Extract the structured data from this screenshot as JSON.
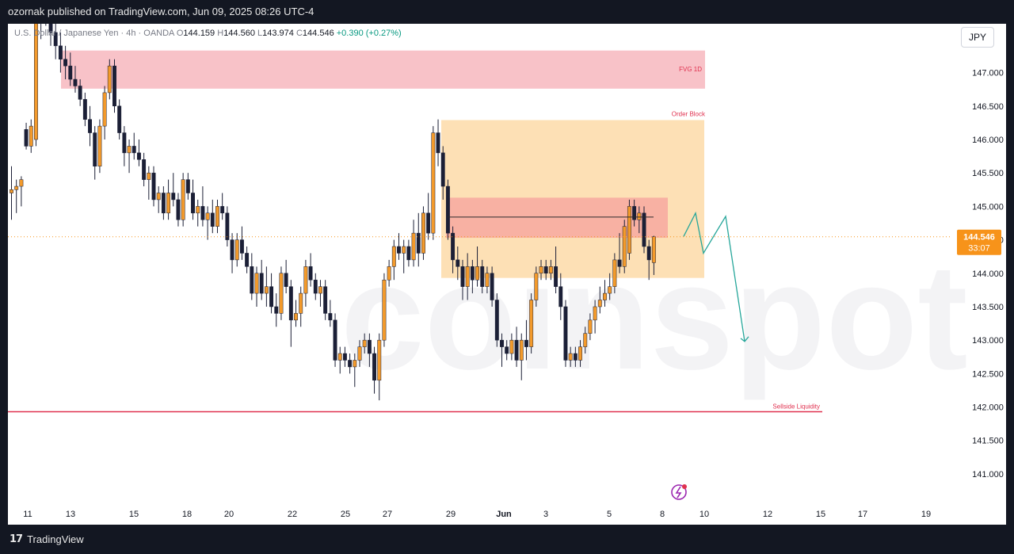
{
  "header": {
    "published_text": "ozornak published on TradingView.com, Jun 09, 2025 08:26 UTC-4"
  },
  "footer": {
    "brand": "TradingView",
    "brand_mark": "17"
  },
  "legend": {
    "symbol": "U.S. Dollar / Japanese Yen · 4h · OANDA",
    "open_key": "O",
    "open": "144.159",
    "high_key": "H",
    "high": "144.560",
    "low_key": "L",
    "low": "143.974",
    "close_key": "C",
    "close": "144.546",
    "change": "+0.390 (+0.27%)"
  },
  "currency_button": "JPY",
  "watermark": "coinspot",
  "price_tag": {
    "price": "144.546",
    "countdown": "33:07"
  },
  "colors": {
    "bull": "#f39a2b",
    "bear": "#1b1f36",
    "fvg": "#f8c2c8",
    "order_block": "#fde0b5",
    "inner_zone": "#f7a8a0",
    "liquidity": "#e0314f",
    "projection": "#26a69a",
    "tag_bg": "#f7931a"
  },
  "chart_data": {
    "type": "candlestick",
    "ylim": [
      140.62,
      147.73
    ],
    "y_ticks": [
      "147.000",
      "146.500",
      "146.000",
      "145.500",
      "145.000",
      "144.500",
      "144.000",
      "143.500",
      "143.000",
      "142.500",
      "142.000",
      "141.500",
      "141.000"
    ],
    "x_ticks": [
      "11",
      "13",
      "15",
      "18",
      "20",
      "22",
      "25",
      "27",
      "29",
      "Jun",
      "3",
      "5",
      "8",
      "10",
      "12",
      "15",
      "17",
      "19"
    ],
    "current_price": 144.546,
    "candles": [
      {
        "o": 145.2,
        "h": 145.6,
        "l": 144.8,
        "c": 145.25
      },
      {
        "o": 145.25,
        "h": 145.4,
        "l": 144.9,
        "c": 145.3
      },
      {
        "o": 145.3,
        "h": 145.45,
        "l": 145.0,
        "c": 145.4
      },
      {
        "o": 146.15,
        "h": 146.25,
        "l": 145.85,
        "c": 145.9
      },
      {
        "o": 145.9,
        "h": 146.3,
        "l": 145.8,
        "c": 146.2
      },
      {
        "o": 146.0,
        "h": 147.9,
        "l": 145.9,
        "c": 147.8
      },
      {
        "o": 147.8,
        "h": 148.2,
        "l": 147.5,
        "c": 148.0
      },
      {
        "o": 148.0,
        "h": 148.3,
        "l": 147.7,
        "c": 147.8
      },
      {
        "o": 147.8,
        "h": 148.0,
        "l": 147.4,
        "c": 147.6
      },
      {
        "o": 147.6,
        "h": 147.8,
        "l": 147.2,
        "c": 147.4
      },
      {
        "o": 147.4,
        "h": 147.6,
        "l": 147.0,
        "c": 147.2
      },
      {
        "o": 147.2,
        "h": 147.4,
        "l": 146.9,
        "c": 147.1
      },
      {
        "o": 147.1,
        "h": 147.3,
        "l": 146.8,
        "c": 146.9
      },
      {
        "o": 146.9,
        "h": 147.1,
        "l": 146.7,
        "c": 146.8
      },
      {
        "o": 146.8,
        "h": 146.9,
        "l": 146.5,
        "c": 146.6
      },
      {
        "o": 146.6,
        "h": 146.7,
        "l": 146.2,
        "c": 146.3
      },
      {
        "o": 146.3,
        "h": 146.5,
        "l": 145.9,
        "c": 146.1
      },
      {
        "o": 146.1,
        "h": 146.2,
        "l": 145.4,
        "c": 145.6
      },
      {
        "o": 145.6,
        "h": 146.3,
        "l": 145.5,
        "c": 146.2
      },
      {
        "o": 146.2,
        "h": 146.8,
        "l": 146.0,
        "c": 146.7
      },
      {
        "o": 146.7,
        "h": 147.2,
        "l": 146.6,
        "c": 147.1
      },
      {
        "o": 147.1,
        "h": 147.2,
        "l": 146.4,
        "c": 146.5
      },
      {
        "o": 146.5,
        "h": 146.6,
        "l": 146.0,
        "c": 146.1
      },
      {
        "o": 146.1,
        "h": 146.2,
        "l": 145.6,
        "c": 145.8
      },
      {
        "o": 145.8,
        "h": 146.0,
        "l": 145.5,
        "c": 145.9
      },
      {
        "o": 145.9,
        "h": 146.1,
        "l": 145.7,
        "c": 145.8
      },
      {
        "o": 145.8,
        "h": 146.0,
        "l": 145.6,
        "c": 145.7
      },
      {
        "o": 145.7,
        "h": 145.8,
        "l": 145.3,
        "c": 145.4
      },
      {
        "o": 145.4,
        "h": 145.6,
        "l": 145.1,
        "c": 145.5
      },
      {
        "o": 145.5,
        "h": 145.6,
        "l": 145.0,
        "c": 145.1
      },
      {
        "o": 145.1,
        "h": 145.3,
        "l": 144.9,
        "c": 145.2
      },
      {
        "o": 145.2,
        "h": 145.3,
        "l": 144.8,
        "c": 144.9
      },
      {
        "o": 144.9,
        "h": 145.4,
        "l": 144.8,
        "c": 145.2
      },
      {
        "o": 145.2,
        "h": 145.5,
        "l": 145.0,
        "c": 145.1
      },
      {
        "o": 145.1,
        "h": 145.2,
        "l": 144.7,
        "c": 144.8
      },
      {
        "o": 144.8,
        "h": 145.5,
        "l": 144.7,
        "c": 145.4
      },
      {
        "o": 145.4,
        "h": 145.5,
        "l": 145.1,
        "c": 145.2
      },
      {
        "o": 145.2,
        "h": 145.4,
        "l": 144.8,
        "c": 144.9
      },
      {
        "o": 144.9,
        "h": 145.1,
        "l": 144.7,
        "c": 145.0
      },
      {
        "o": 145.0,
        "h": 145.3,
        "l": 144.7,
        "c": 144.8
      },
      {
        "o": 144.8,
        "h": 145.0,
        "l": 144.5,
        "c": 144.9
      },
      {
        "o": 144.9,
        "h": 145.1,
        "l": 144.6,
        "c": 144.7
      },
      {
        "o": 144.7,
        "h": 145.1,
        "l": 144.6,
        "c": 145.0
      },
      {
        "o": 145.0,
        "h": 145.2,
        "l": 144.8,
        "c": 144.9
      },
      {
        "o": 144.9,
        "h": 145.0,
        "l": 144.4,
        "c": 144.5
      },
      {
        "o": 144.5,
        "h": 144.6,
        "l": 144.0,
        "c": 144.2
      },
      {
        "o": 144.2,
        "h": 144.6,
        "l": 144.1,
        "c": 144.5
      },
      {
        "o": 144.5,
        "h": 144.7,
        "l": 144.2,
        "c": 144.3
      },
      {
        "o": 144.3,
        "h": 144.4,
        "l": 144.0,
        "c": 144.1
      },
      {
        "o": 144.1,
        "h": 144.3,
        "l": 143.6,
        "c": 143.7
      },
      {
        "o": 143.7,
        "h": 144.1,
        "l": 143.5,
        "c": 144.0
      },
      {
        "o": 144.0,
        "h": 144.2,
        "l": 143.6,
        "c": 143.7
      },
      {
        "o": 143.7,
        "h": 144.1,
        "l": 143.5,
        "c": 143.8
      },
      {
        "o": 143.8,
        "h": 144.0,
        "l": 143.4,
        "c": 143.5
      },
      {
        "o": 143.5,
        "h": 143.7,
        "l": 143.2,
        "c": 143.4
      },
      {
        "o": 143.4,
        "h": 144.1,
        "l": 143.3,
        "c": 144.0
      },
      {
        "o": 144.0,
        "h": 144.2,
        "l": 143.7,
        "c": 143.8
      },
      {
        "o": 143.8,
        "h": 143.9,
        "l": 142.9,
        "c": 143.3
      },
      {
        "o": 143.3,
        "h": 143.6,
        "l": 143.2,
        "c": 143.4
      },
      {
        "o": 143.4,
        "h": 143.8,
        "l": 143.2,
        "c": 143.7
      },
      {
        "o": 143.7,
        "h": 144.2,
        "l": 143.5,
        "c": 144.1
      },
      {
        "o": 144.1,
        "h": 144.3,
        "l": 143.8,
        "c": 143.9
      },
      {
        "o": 143.9,
        "h": 144.0,
        "l": 143.6,
        "c": 143.7
      },
      {
        "o": 143.7,
        "h": 143.9,
        "l": 143.5,
        "c": 143.8
      },
      {
        "o": 143.8,
        "h": 143.9,
        "l": 143.3,
        "c": 143.4
      },
      {
        "o": 143.4,
        "h": 143.6,
        "l": 143.2,
        "c": 143.3
      },
      {
        "o": 143.3,
        "h": 143.4,
        "l": 142.6,
        "c": 142.7
      },
      {
        "o": 142.7,
        "h": 142.9,
        "l": 142.5,
        "c": 142.8
      },
      {
        "o": 142.8,
        "h": 142.9,
        "l": 142.6,
        "c": 142.7
      },
      {
        "o": 142.7,
        "h": 142.8,
        "l": 142.5,
        "c": 142.6
      },
      {
        "o": 142.6,
        "h": 142.8,
        "l": 142.3,
        "c": 142.7
      },
      {
        "o": 142.7,
        "h": 143.0,
        "l": 142.6,
        "c": 142.9
      },
      {
        "o": 142.9,
        "h": 143.1,
        "l": 142.8,
        "c": 143.0
      },
      {
        "o": 143.0,
        "h": 143.1,
        "l": 142.6,
        "c": 142.8
      },
      {
        "o": 142.8,
        "h": 142.9,
        "l": 142.2,
        "c": 142.4
      },
      {
        "o": 142.4,
        "h": 143.1,
        "l": 142.1,
        "c": 143.0
      },
      {
        "o": 143.0,
        "h": 144.0,
        "l": 142.9,
        "c": 143.9
      },
      {
        "o": 143.9,
        "h": 144.2,
        "l": 143.8,
        "c": 144.1
      },
      {
        "o": 144.1,
        "h": 144.5,
        "l": 143.9,
        "c": 144.4
      },
      {
        "o": 144.4,
        "h": 144.6,
        "l": 144.2,
        "c": 144.3
      },
      {
        "o": 144.3,
        "h": 144.5,
        "l": 144.0,
        "c": 144.4
      },
      {
        "o": 144.4,
        "h": 144.5,
        "l": 144.1,
        "c": 144.2
      },
      {
        "o": 144.2,
        "h": 144.8,
        "l": 144.1,
        "c": 144.6
      },
      {
        "o": 144.6,
        "h": 144.9,
        "l": 144.1,
        "c": 144.3
      },
      {
        "o": 144.3,
        "h": 145.0,
        "l": 144.2,
        "c": 144.9
      },
      {
        "o": 144.9,
        "h": 145.2,
        "l": 144.5,
        "c": 144.6
      },
      {
        "o": 144.6,
        "h": 146.2,
        "l": 144.5,
        "c": 146.1
      },
      {
        "o": 146.1,
        "h": 146.3,
        "l": 145.6,
        "c": 145.8
      },
      {
        "o": 145.8,
        "h": 145.9,
        "l": 145.1,
        "c": 145.3
      },
      {
        "o": 145.3,
        "h": 145.4,
        "l": 144.5,
        "c": 144.6
      },
      {
        "o": 144.6,
        "h": 144.7,
        "l": 144.0,
        "c": 144.2
      },
      {
        "o": 144.2,
        "h": 144.4,
        "l": 143.9,
        "c": 144.1
      },
      {
        "o": 144.1,
        "h": 144.2,
        "l": 143.6,
        "c": 143.8
      },
      {
        "o": 143.8,
        "h": 144.3,
        "l": 143.6,
        "c": 144.1
      },
      {
        "o": 144.1,
        "h": 144.2,
        "l": 143.7,
        "c": 143.9
      },
      {
        "o": 143.9,
        "h": 144.4,
        "l": 143.8,
        "c": 144.1
      },
      {
        "o": 144.1,
        "h": 144.2,
        "l": 143.7,
        "c": 143.8
      },
      {
        "o": 143.8,
        "h": 144.1,
        "l": 143.7,
        "c": 144.0
      },
      {
        "o": 144.0,
        "h": 144.1,
        "l": 143.5,
        "c": 143.6
      },
      {
        "o": 143.6,
        "h": 143.7,
        "l": 142.9,
        "c": 143.0
      },
      {
        "o": 143.0,
        "h": 143.1,
        "l": 142.6,
        "c": 142.9
      },
      {
        "o": 142.9,
        "h": 143.0,
        "l": 142.7,
        "c": 142.8
      },
      {
        "o": 142.8,
        "h": 143.1,
        "l": 142.7,
        "c": 143.0
      },
      {
        "o": 143.0,
        "h": 143.2,
        "l": 142.6,
        "c": 142.7
      },
      {
        "o": 142.7,
        "h": 143.1,
        "l": 142.4,
        "c": 143.0
      },
      {
        "o": 143.0,
        "h": 143.3,
        "l": 142.7,
        "c": 142.9
      },
      {
        "o": 142.9,
        "h": 143.7,
        "l": 142.8,
        "c": 143.6
      },
      {
        "o": 143.6,
        "h": 144.1,
        "l": 143.5,
        "c": 144.0
      },
      {
        "o": 144.0,
        "h": 144.2,
        "l": 143.9,
        "c": 144.1
      },
      {
        "o": 144.1,
        "h": 144.2,
        "l": 143.9,
        "c": 144.0
      },
      {
        "o": 144.0,
        "h": 144.2,
        "l": 143.9,
        "c": 144.1
      },
      {
        "o": 144.1,
        "h": 144.4,
        "l": 143.7,
        "c": 143.8
      },
      {
        "o": 143.8,
        "h": 144.0,
        "l": 143.3,
        "c": 143.5
      },
      {
        "o": 143.5,
        "h": 143.6,
        "l": 142.6,
        "c": 142.7
      },
      {
        "o": 142.7,
        "h": 142.9,
        "l": 142.6,
        "c": 142.8
      },
      {
        "o": 142.8,
        "h": 142.9,
        "l": 142.6,
        "c": 142.7
      },
      {
        "o": 142.7,
        "h": 143.0,
        "l": 142.6,
        "c": 142.9
      },
      {
        "o": 142.9,
        "h": 143.2,
        "l": 142.8,
        "c": 143.1
      },
      {
        "o": 143.1,
        "h": 143.4,
        "l": 143.0,
        "c": 143.3
      },
      {
        "o": 143.3,
        "h": 143.6,
        "l": 143.1,
        "c": 143.5
      },
      {
        "o": 143.5,
        "h": 143.8,
        "l": 143.4,
        "c": 143.6
      },
      {
        "o": 143.6,
        "h": 143.9,
        "l": 143.5,
        "c": 143.7
      },
      {
        "o": 143.7,
        "h": 144.0,
        "l": 143.6,
        "c": 143.8
      },
      {
        "o": 143.8,
        "h": 144.3,
        "l": 143.7,
        "c": 144.2
      },
      {
        "o": 144.2,
        "h": 144.6,
        "l": 144.0,
        "c": 144.1
      },
      {
        "o": 144.1,
        "h": 144.8,
        "l": 144.0,
        "c": 144.7
      },
      {
        "o": 144.3,
        "h": 145.1,
        "l": 144.2,
        "c": 145.0
      },
      {
        "o": 145.0,
        "h": 145.1,
        "l": 144.7,
        "c": 144.8
      },
      {
        "o": 144.8,
        "h": 145.0,
        "l": 144.6,
        "c": 144.9
      },
      {
        "o": 144.9,
        "h": 145.0,
        "l": 144.3,
        "c": 144.4
      },
      {
        "o": 144.4,
        "h": 144.5,
        "l": 143.9,
        "c": 144.2
      },
      {
        "o": 144.159,
        "h": 144.56,
        "l": 143.974,
        "c": 144.546
      }
    ],
    "annotations": [
      {
        "type": "zone",
        "label": "FVG 1D",
        "y_top": 147.33,
        "y_bottom": 146.76
      },
      {
        "type": "zone",
        "label": "Order Block",
        "y_top": 146.29,
        "y_bottom": 143.93
      },
      {
        "type": "zone",
        "label": "",
        "y_top": 145.13,
        "y_bottom": 144.53
      },
      {
        "type": "line",
        "label": "",
        "y": 144.84
      },
      {
        "type": "line",
        "label": "Sellside Liquidity",
        "y": 141.93
      }
    ],
    "projection": [
      {
        "x": "Jun 9 early",
        "y": 144.55
      },
      {
        "x": "Jun 9",
        "y": 144.9
      },
      {
        "x": "Jun 9 late",
        "y": 144.3
      },
      {
        "x": "Jun 10",
        "y": 144.85
      },
      {
        "x": "Jun 11",
        "y": 142.98
      }
    ],
    "legend_position": "top-left",
    "grid": false
  }
}
